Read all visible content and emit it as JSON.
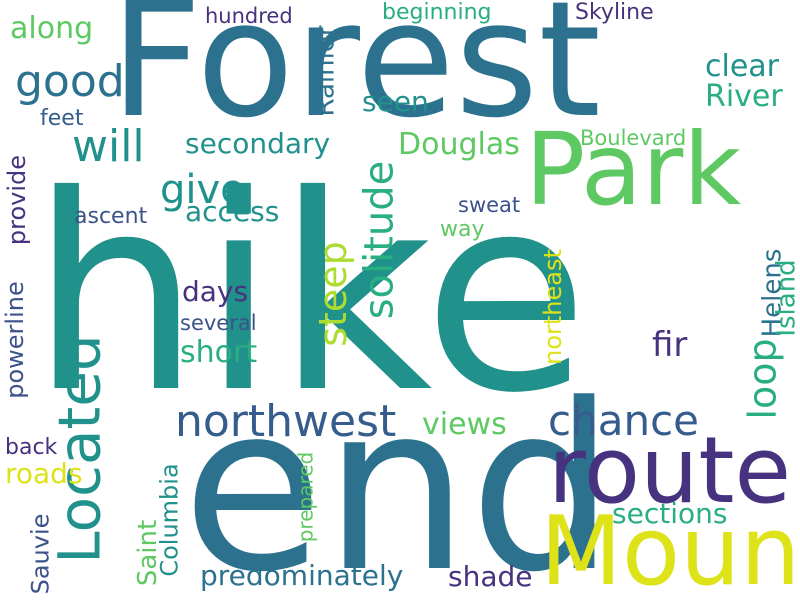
{
  "palette": {
    "dark_purple": "#46327e",
    "indigo": "#3b528b",
    "blue": "#365c8d",
    "teal_blue": "#2c728e",
    "teal": "#21918c",
    "green_teal": "#28ae80",
    "green": "#5ec962",
    "lime": "#addc30",
    "yellow": "#dde318"
  },
  "words": {
    "hike": "hike",
    "end": "end",
    "forest": "Forest",
    "park": "Park",
    "mount": "Mount",
    "route": "route",
    "located": "Located",
    "northwest": "northwest",
    "chance": "chance",
    "loop": "loop",
    "solitude": "solitude",
    "steep": "steep",
    "good": "good",
    "give": "give",
    "will": "will",
    "clear": "clear",
    "river": "River",
    "douglas": "Douglas",
    "secondary": "secondary",
    "access": "access",
    "seen": "seen",
    "rainier": "Rainier",
    "along": "along",
    "helens": "Helens",
    "island": "Island",
    "northeast": "northeast",
    "days": "days",
    "short": "short",
    "several": "several",
    "fir": "fir",
    "views": "views",
    "sections": "sections",
    "predominately": "predominately",
    "shade": "shade",
    "saint": "Saint",
    "columbia": "Columbia",
    "prepared": "prepared",
    "sauvie": "Sauvie",
    "roads": "roads",
    "back": "back",
    "powerline": "powerline",
    "provide": "provide",
    "ascent": "ascent",
    "feet": "feet",
    "hundred": "hundred",
    "beginning": "beginning",
    "skyline": "Skyline",
    "boulevard": "Boulevard",
    "sweat": "sweat",
    "way": "way"
  }
}
